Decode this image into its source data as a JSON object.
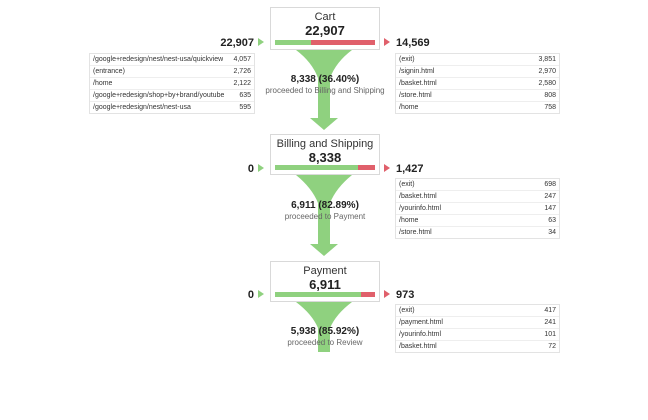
{
  "stages": [
    {
      "name": "Cart",
      "count": "22,907",
      "in_count": "22,907",
      "out_count": "14,569",
      "proceed_value": "8,338 (36.40%)",
      "proceed_label": "proceeded to Billing and Shipping",
      "bar_green_fraction": 0.364,
      "entries": [
        {
          "label": "/google+redesign/nest/nest-usa/quickview",
          "value": "4,057"
        },
        {
          "label": "(entrance)",
          "value": "2,726"
        },
        {
          "label": "/home",
          "value": "2,122"
        },
        {
          "label": "/google+redesign/shop+by+brand/youtube",
          "value": "635"
        },
        {
          "label": "/google+redesign/nest/nest-usa",
          "value": "595"
        }
      ],
      "exits": [
        {
          "label": "(exit)",
          "value": "3,851"
        },
        {
          "label": "/signin.html",
          "value": "2,970"
        },
        {
          "label": "/basket.html",
          "value": "2,580"
        },
        {
          "label": "/store.html",
          "value": "808"
        },
        {
          "label": "/home",
          "value": "758"
        }
      ]
    },
    {
      "name": "Billing and Shipping",
      "count": "8,338",
      "in_count": "0",
      "out_count": "1,427",
      "proceed_value": "6,911 (82.89%)",
      "proceed_label": "proceeded to Payment",
      "bar_green_fraction": 0.8289,
      "exits": [
        {
          "label": "(exit)",
          "value": "698"
        },
        {
          "label": "/basket.html",
          "value": "247"
        },
        {
          "label": "/yourinfo.html",
          "value": "147"
        },
        {
          "label": "/home",
          "value": "63"
        },
        {
          "label": "/store.html",
          "value": "34"
        }
      ]
    },
    {
      "name": "Payment",
      "count": "6,911",
      "in_count": "0",
      "out_count": "973",
      "proceed_value": "5,938 (85.92%)",
      "proceed_label": "proceeded to Review",
      "bar_green_fraction": 0.8592,
      "exits": [
        {
          "label": "(exit)",
          "value": "417"
        },
        {
          "label": "/payment.html",
          "value": "241"
        },
        {
          "label": "/yourinfo.html",
          "value": "101"
        },
        {
          "label": "/basket.html",
          "value": "72"
        }
      ]
    }
  ],
  "colors": {
    "proceed_green": "#8fd17f",
    "exit_red": "#e0606b"
  }
}
